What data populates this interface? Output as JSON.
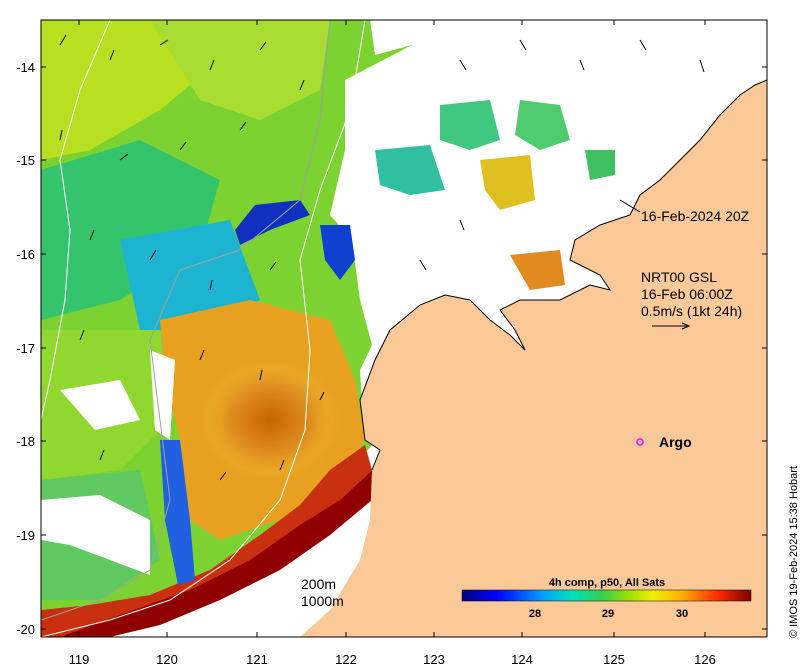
{
  "map": {
    "region": "North-west Australia SST",
    "lon_ticks": [
      "119",
      "120",
      "121",
      "122",
      "123",
      "124",
      "125",
      "126"
    ],
    "lat_ticks": [
      "-14",
      "-15",
      "-16",
      "-17",
      "-18",
      "-19",
      "-20"
    ],
    "lon_range": [
      118.6,
      126.7
    ],
    "lat_range": [
      -20.2,
      -13.5
    ]
  },
  "annotations": {
    "coastline_label": "16-Feb-2024 20Z",
    "current_title": "NRT00 GSL",
    "current_time": "16-Feb 06:00Z",
    "current_scale": "0.5m/s (1kt 24h)",
    "argo_label": "Argo",
    "depth_200": "200m",
    "depth_1000": "1000m"
  },
  "colorbar": {
    "title": "4h comp, p50, All Sats",
    "ticks": [
      "28",
      "29",
      "30"
    ]
  },
  "credit": "© IMOS 19-Feb-2024 15:38 Hobart",
  "colors": {
    "land": "#fbc898",
    "cold": "#00008b",
    "warm": "#8b0000"
  }
}
